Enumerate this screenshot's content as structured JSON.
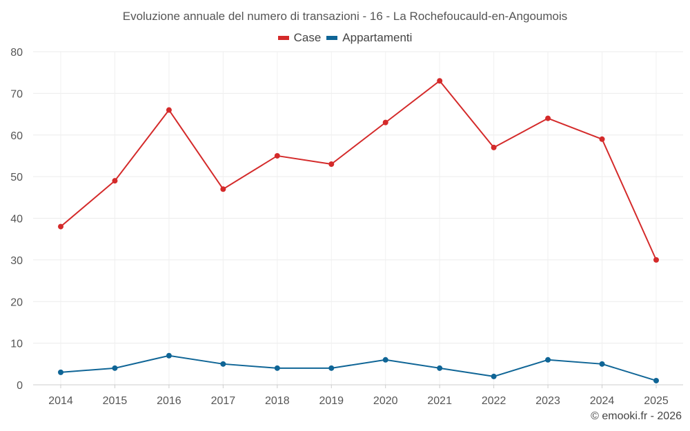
{
  "chart_data": {
    "type": "line",
    "title": "Evoluzione annuale del numero di transazioni - 16 - La Rochefoucauld-en-Angoumois",
    "categories": [
      "2014",
      "2015",
      "2016",
      "2017",
      "2018",
      "2019",
      "2020",
      "2021",
      "2022",
      "2023",
      "2024",
      "2025"
    ],
    "series": [
      {
        "name": "Case",
        "color": "#d42a2a",
        "values": [
          38,
          49,
          66,
          47,
          55,
          53,
          63,
          73,
          57,
          64,
          59,
          30
        ]
      },
      {
        "name": "Appartamenti",
        "color": "#0f6596",
        "values": [
          3,
          4,
          7,
          5,
          4,
          4,
          6,
          4,
          2,
          6,
          5,
          1
        ]
      }
    ],
    "yticks": [
      "0",
      "10",
      "20",
      "30",
      "40",
      "50",
      "60",
      "70",
      "80"
    ],
    "ylim": [
      0,
      80
    ],
    "legend_position": "top-center",
    "grid": true
  },
  "footer": {
    "credit": "© emooki.fr - 2026"
  }
}
